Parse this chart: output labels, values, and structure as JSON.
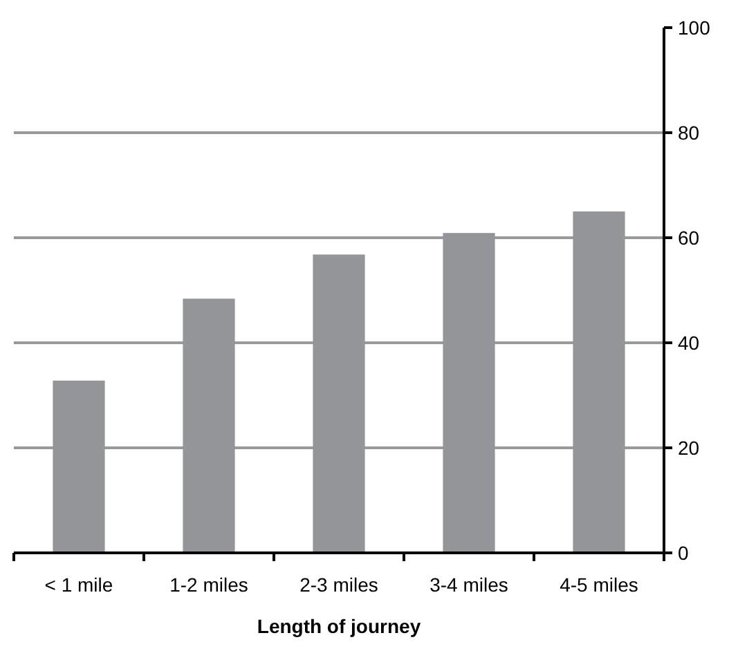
{
  "chart_data": {
    "type": "bar",
    "xlabel": "Length of journey",
    "categories": [
      "< 1 mile",
      "1-2 miles",
      "2-3 miles",
      "3-4 miles",
      "4-5 miles"
    ],
    "values": [
      32.8,
      48.4,
      56.8,
      60.9,
      65.0
    ],
    "color": "#939598",
    "ylim": [
      0,
      100
    ],
    "yticks": [
      0,
      20,
      40,
      60,
      80,
      100
    ],
    "grid": "y"
  }
}
